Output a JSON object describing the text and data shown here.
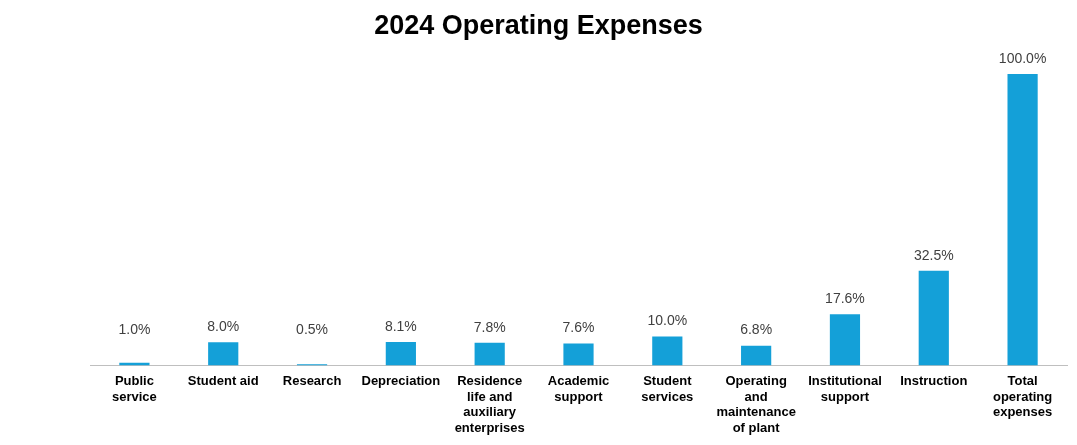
{
  "chart_data": {
    "type": "bar",
    "title": "2024 Operating Expenses",
    "categories": [
      "Public service",
      "Student aid",
      "Research",
      "Depreciation",
      "Residence life and auxiliary enterprises",
      "Academic support",
      "Student services",
      "Operating and maintenance of plant",
      "Institutional support",
      "Instruction",
      "Total operating expenses"
    ],
    "values": [
      1.0,
      8.0,
      0.5,
      8.1,
      7.8,
      7.6,
      10.0,
      6.8,
      17.6,
      32.5,
      100.0
    ],
    "value_labels": [
      "1.0%",
      "8.0%",
      "0.5%",
      "8.1%",
      "7.8%",
      "7.6%",
      "10.0%",
      "6.8%",
      "17.6%",
      "32.5%",
      "100.0%"
    ],
    "color": "#14a0d8",
    "grid": false,
    "legend": false
  }
}
